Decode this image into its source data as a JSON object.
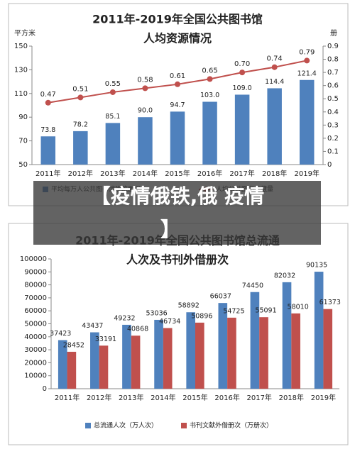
{
  "chart_data": [
    {
      "type": "bar",
      "title": "2011年-2019年全国公共图书馆",
      "subtitle": "人均资源情况",
      "y_label": "平方米",
      "y2_label": "册",
      "categories": [
        "2011年",
        "2012年",
        "2013年",
        "2014年",
        "2015年",
        "2016年",
        "2017年",
        "2018年",
        "2019年"
      ],
      "series": [
        {
          "name": "平均每万人公共图书馆建筑面积",
          "color": "#4f81bd",
          "values": [
            73.8,
            78.2,
            85.1,
            90,
            94.7,
            103,
            109,
            114.4,
            121.4
          ],
          "value_labels": [
            "73.8",
            "78.2",
            "85.1",
            "90.0",
            "94.7",
            "103.0",
            "109.0",
            "114.4",
            "121.4"
          ]
        },
        {
          "name": "人均公共图书馆藏量",
          "type": "line",
          "axis": "y2",
          "color": "#c0504d",
          "values": [
            0.47,
            0.51,
            0.55,
            0.58,
            0.61,
            0.65,
            0.7,
            0.74,
            0.79
          ],
          "value_labels": [
            "0.47",
            "0.51",
            "0.55",
            "0.58",
            "0.61",
            "0.65",
            "0.70",
            "0.74",
            "0.79"
          ]
        }
      ],
      "ylim": [
        50,
        150
      ],
      "yticks": [
        50,
        70,
        90,
        110,
        130,
        150
      ],
      "y2lim": [
        0,
        0.9
      ],
      "y2ticks": [
        0,
        0.1,
        0.2,
        0.3,
        0.4,
        0.5,
        0.6,
        0.7,
        0.8,
        0.9
      ],
      "grid": false
    },
    {
      "type": "bar",
      "title": "2011年-2019年全国公共图书馆总流通",
      "subtitle": "人次及书刊外借册次",
      "categories": [
        "2011年",
        "2012年",
        "2013年",
        "2014年",
        "2015年",
        "2016年",
        "2017年",
        "2018年",
        "2019年"
      ],
      "series": [
        {
          "name": "总流通人次（万人次）",
          "color": "#4f81bd",
          "values": [
            37423,
            43437,
            49232,
            53036,
            58892,
            66037,
            74450,
            82032,
            90135
          ]
        },
        {
          "name": "书刊文献外借册次（万册次）",
          "color": "#c0504d",
          "values": [
            28452,
            33191,
            40868,
            46734,
            50896,
            54725,
            55091,
            58010,
            61373
          ]
        }
      ],
      "ylim": [
        0,
        100000
      ],
      "yticks": [
        0,
        10000,
        20000,
        30000,
        40000,
        50000,
        60000,
        70000,
        80000,
        90000,
        100000
      ],
      "grid": false
    }
  ],
  "banner": [
    "【疫情俄铁,俄 疫情",
    "】"
  ]
}
